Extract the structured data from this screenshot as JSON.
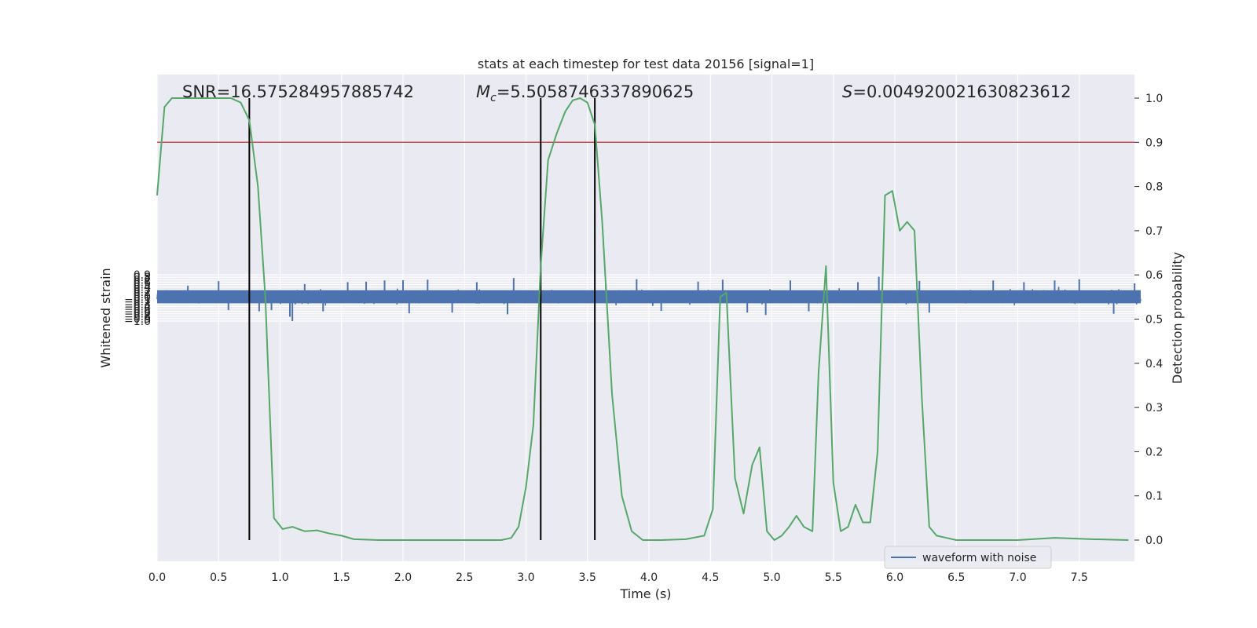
{
  "chart_data": {
    "type": "line",
    "title": "stats at each timestep for test data 20156 [signal=1]",
    "xlabel": "Time (s)",
    "ylabel": "Whitened strain",
    "y2label": "Detection probability",
    "xlim": [
      0.0,
      8.0
    ],
    "ylim": [
      -1.09,
      0.9
    ],
    "y2lim": [
      -0.05,
      1.04
    ],
    "xticks": [
      "0.0",
      "0.5",
      "1.0",
      "1.5",
      "2.0",
      "2.5",
      "3.0",
      "3.5",
      "4.0",
      "4.5",
      "5.0",
      "5.5",
      "6.0",
      "6.5",
      "7.0",
      "7.5"
    ],
    "yticks": [
      "0.9",
      "0.8",
      "0.7",
      "0.6",
      "0.5",
      "0.4",
      "0.3",
      "0.2",
      "0.1",
      "0.0",
      "−0.1",
      "−0.2",
      "−0.3",
      "−0.4",
      "−0.5",
      "−0.6",
      "−0.7",
      "−0.8",
      "−0.9",
      "−1.0"
    ],
    "y2ticks": [
      "0.0",
      "0.1",
      "0.2",
      "0.3",
      "0.4",
      "0.5",
      "0.6",
      "0.7",
      "0.8",
      "0.9",
      "1.0"
    ],
    "grid": true,
    "legend": {
      "position": "lower-right",
      "entries": [
        "waveform with noise"
      ]
    },
    "annotations": {
      "snr": "SNR=16.575284957885742",
      "mc_symbol": "M",
      "mc_sub": "c",
      "mc_value": "=5.5058746337890625",
      "s_symbol": "S",
      "s_value": "=0.004920021630823612"
    },
    "threshold": {
      "value": 0.9,
      "axis": "y2",
      "color": "#c44e52"
    },
    "vlines": [
      0.75,
      3.12,
      3.56
    ],
    "series": [
      {
        "name": "waveform with noise",
        "axis": "y",
        "color": "#4c72b0",
        "description_values": "dense noisy strain, envelope approx ±0.45 with peaks",
        "spikes": [
          [
            0.25,
            0.45
          ],
          [
            0.5,
            0.64
          ],
          [
            0.58,
            -0.55
          ],
          [
            0.83,
            -0.6
          ],
          [
            0.93,
            -0.55
          ],
          [
            1.08,
            -0.82
          ],
          [
            1.1,
            -1.0
          ],
          [
            1.2,
            0.52
          ],
          [
            1.35,
            -0.6
          ],
          [
            1.55,
            0.6
          ],
          [
            1.7,
            0.62
          ],
          [
            1.85,
            0.67
          ],
          [
            2.0,
            0.68
          ],
          [
            2.05,
            -0.68
          ],
          [
            2.2,
            0.7
          ],
          [
            2.4,
            -0.65
          ],
          [
            2.6,
            0.6
          ],
          [
            2.85,
            -0.72
          ],
          [
            2.9,
            0.77
          ],
          [
            3.65,
            0.52
          ],
          [
            3.9,
            0.72
          ],
          [
            4.1,
            -0.58
          ],
          [
            4.4,
            0.62
          ],
          [
            4.6,
            0.7
          ],
          [
            4.8,
            -0.65
          ],
          [
            4.95,
            -0.75
          ],
          [
            5.15,
            0.67
          ],
          [
            5.3,
            -0.6
          ],
          [
            5.7,
            0.6
          ],
          [
            5.87,
            0.82
          ],
          [
            6.2,
            0.65
          ],
          [
            6.28,
            -0.65
          ],
          [
            6.8,
            0.67
          ],
          [
            7.05,
            0.6
          ],
          [
            7.3,
            0.67
          ],
          [
            7.5,
            0.72
          ],
          [
            7.78,
            -0.7
          ],
          [
            7.95,
            0.55
          ]
        ]
      },
      {
        "name": "",
        "axis": "y2",
        "color": "#55a868",
        "x": [
          0.0,
          0.06,
          0.12,
          0.2,
          0.3,
          0.45,
          0.6,
          0.68,
          0.75,
          0.82,
          0.88,
          0.95,
          1.02,
          1.1,
          1.15,
          1.2,
          1.3,
          1.4,
          1.5,
          1.6,
          1.8,
          2.0,
          2.3,
          2.6,
          2.8,
          2.88,
          2.94,
          3.0,
          3.06,
          3.12,
          3.18,
          3.25,
          3.32,
          3.38,
          3.44,
          3.5,
          3.56,
          3.62,
          3.7,
          3.78,
          3.86,
          3.95,
          4.1,
          4.3,
          4.45,
          4.52,
          4.58,
          4.63,
          4.7,
          4.77,
          4.84,
          4.9,
          4.96,
          5.02,
          5.08,
          5.14,
          5.2,
          5.26,
          5.33,
          5.38,
          5.44,
          5.5,
          5.56,
          5.62,
          5.68,
          5.74,
          5.8,
          5.86,
          5.92,
          5.98,
          6.04,
          6.1,
          6.16,
          6.22,
          6.28,
          6.34,
          6.42,
          6.5,
          6.7,
          7.0,
          7.3,
          7.6,
          7.9
        ],
        "y": [
          0.78,
          0.98,
          1.0,
          1.0,
          1.0,
          1.0,
          1.0,
          0.99,
          0.95,
          0.8,
          0.55,
          0.05,
          0.025,
          0.03,
          0.025,
          0.02,
          0.022,
          0.015,
          0.01,
          0.002,
          0.0,
          0.0,
          0.0,
          0.0,
          0.0,
          0.005,
          0.03,
          0.12,
          0.26,
          0.62,
          0.86,
          0.92,
          0.97,
          0.995,
          1.0,
          0.99,
          0.94,
          0.72,
          0.33,
          0.1,
          0.02,
          0.0,
          0.0,
          0.002,
          0.01,
          0.07,
          0.55,
          0.56,
          0.14,
          0.06,
          0.17,
          0.21,
          0.02,
          0.0,
          0.01,
          0.03,
          0.055,
          0.03,
          0.02,
          0.38,
          0.62,
          0.13,
          0.02,
          0.03,
          0.08,
          0.04,
          0.04,
          0.2,
          0.78,
          0.79,
          0.7,
          0.72,
          0.7,
          0.32,
          0.03,
          0.01,
          0.005,
          0.0,
          0.0,
          0.0,
          0.005,
          0.002,
          0.0
        ]
      }
    ]
  }
}
